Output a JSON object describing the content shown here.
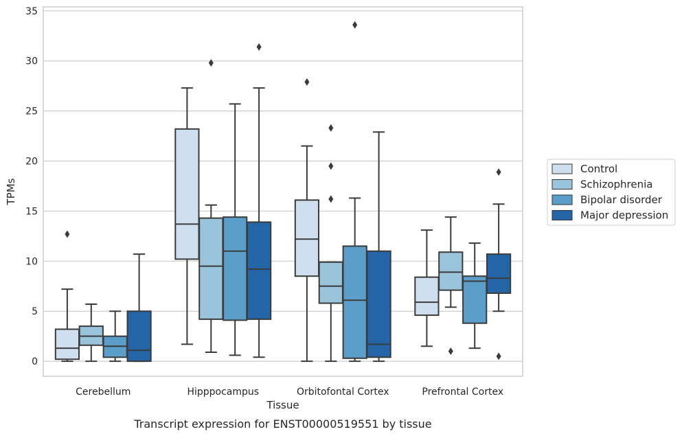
{
  "chart_data": {
    "type": "box",
    "xlabel": "Tissue",
    "ylabel": "TPMs",
    "caption": "Transcript expression for ENST00000519551 by tissue",
    "categories": [
      "Cerebellum",
      "Hipppocampus",
      "Orbitofontal Cortex",
      "Prefrontal Cortex"
    ],
    "ylim": [
      -1.5,
      35.4
    ],
    "yticks": [
      0,
      5,
      10,
      15,
      20,
      25,
      30,
      35
    ],
    "grid": "horizontal",
    "legend_position": "right",
    "series": [
      {
        "name": "Control",
        "color": "#cfdff0",
        "boxes": [
          {
            "whisker_low": 0.0,
            "q1": 0.2,
            "median": 1.3,
            "q3": 3.2,
            "whisker_high": 7.2,
            "outliers": [
              12.7
            ]
          },
          {
            "whisker_low": 1.7,
            "q1": 10.2,
            "median": 13.7,
            "q3": 23.2,
            "whisker_high": 27.3,
            "outliers": []
          },
          {
            "whisker_low": 0.0,
            "q1": 8.5,
            "median": 12.2,
            "q3": 16.1,
            "whisker_high": 21.5,
            "outliers": [
              27.9
            ]
          },
          {
            "whisker_low": 1.5,
            "q1": 4.6,
            "median": 5.9,
            "q3": 8.4,
            "whisker_high": 13.1,
            "outliers": []
          }
        ]
      },
      {
        "name": "Schizophrenia",
        "color": "#9ac3dc",
        "boxes": [
          {
            "whisker_low": 0.0,
            "q1": 1.6,
            "median": 2.5,
            "q3": 3.5,
            "whisker_high": 5.7,
            "outliers": []
          },
          {
            "whisker_low": 0.9,
            "q1": 4.2,
            "median": 9.5,
            "q3": 14.3,
            "whisker_high": 15.6,
            "outliers": [
              29.8
            ]
          },
          {
            "whisker_low": 0.0,
            "q1": 5.8,
            "median": 7.5,
            "q3": 9.9,
            "whisker_high": 9.9,
            "outliers": [
              23.3,
              19.5,
              16.2
            ]
          },
          {
            "whisker_low": 5.4,
            "q1": 7.1,
            "median": 8.9,
            "q3": 10.9,
            "whisker_high": 14.4,
            "outliers": [
              1.0
            ]
          }
        ]
      },
      {
        "name": "Bipolar disorder",
        "color": "#5a9ec9",
        "boxes": [
          {
            "whisker_low": 0.0,
            "q1": 0.4,
            "median": 1.5,
            "q3": 2.5,
            "whisker_high": 5.0,
            "outliers": []
          },
          {
            "whisker_low": 0.6,
            "q1": 4.1,
            "median": 11.0,
            "q3": 14.4,
            "whisker_high": 25.7,
            "outliers": []
          },
          {
            "whisker_low": 0.0,
            "q1": 0.3,
            "median": 6.1,
            "q3": 11.5,
            "whisker_high": 16.3,
            "outliers": [
              33.6
            ]
          },
          {
            "whisker_low": 1.3,
            "q1": 3.8,
            "median": 8.0,
            "q3": 8.5,
            "whisker_high": 11.8,
            "outliers": []
          }
        ]
      },
      {
        "name": "Major depression",
        "color": "#2465a8",
        "boxes": [
          {
            "whisker_low": 0.0,
            "q1": 0.0,
            "median": 1.1,
            "q3": 5.0,
            "whisker_high": 10.7,
            "outliers": []
          },
          {
            "whisker_low": 0.4,
            "q1": 4.2,
            "median": 9.2,
            "q3": 13.9,
            "whisker_high": 27.3,
            "outliers": [
              31.4
            ]
          },
          {
            "whisker_low": 0.0,
            "q1": 0.4,
            "median": 1.7,
            "q3": 11.0,
            "whisker_high": 22.9,
            "outliers": []
          },
          {
            "whisker_low": 5.0,
            "q1": 6.8,
            "median": 8.3,
            "q3": 10.7,
            "whisker_high": 15.7,
            "outliers": [
              18.9,
              0.5
            ]
          }
        ]
      }
    ]
  }
}
